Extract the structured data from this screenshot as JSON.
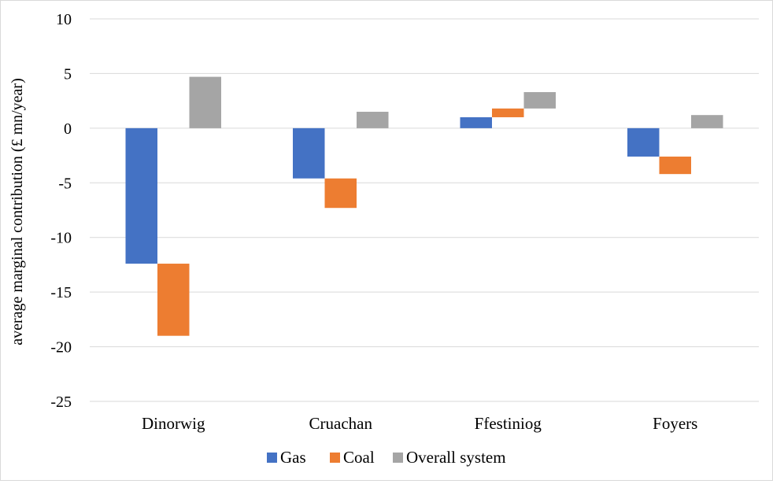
{
  "chart_data": {
    "type": "bar",
    "subtype": "waterfall-stacked",
    "title": "",
    "xlabel": "",
    "ylabel": "average marginal contribution (£ mn/year)",
    "ylim": [
      -25,
      10
    ],
    "yticks": [
      10,
      5,
      0,
      -5,
      -10,
      -15,
      -20,
      -25
    ],
    "grid": true,
    "legend_position": "bottom",
    "categories": [
      "Dinorwig",
      "Cruachan",
      "Ffestiniog",
      "Foyers"
    ],
    "series": [
      {
        "name": "Gas",
        "color": "#4472C4",
        "values": [
          -12.4,
          -4.6,
          1.0,
          -2.6
        ]
      },
      {
        "name": "Coal",
        "color": "#ED7D31",
        "values": [
          -6.6,
          -2.7,
          0.8,
          -1.6
        ]
      },
      {
        "name": "Overall system",
        "color": "#A5A5A5",
        "values": [
          4.7,
          1.5,
          1.5,
          1.2
        ]
      }
    ],
    "bar_segments": [
      {
        "category": "Dinorwig",
        "Gas": [
          0,
          -12.4
        ],
        "Coal": [
          -12.4,
          -19.0
        ],
        "Overall system": [
          0,
          4.7
        ]
      },
      {
        "category": "Cruachan",
        "Gas": [
          0,
          -4.6
        ],
        "Coal": [
          -4.6,
          -7.3
        ],
        "Overall system": [
          0,
          1.5
        ]
      },
      {
        "category": "Ffestiniog",
        "Gas": [
          0,
          1.0
        ],
        "Coal": [
          1.0,
          1.8
        ],
        "Overall system": [
          1.8,
          3.3
        ]
      },
      {
        "category": "Foyers",
        "Gas": [
          0,
          -2.6
        ],
        "Coal": [
          -2.6,
          -4.2
        ],
        "Overall system": [
          0,
          1.2
        ]
      }
    ]
  }
}
